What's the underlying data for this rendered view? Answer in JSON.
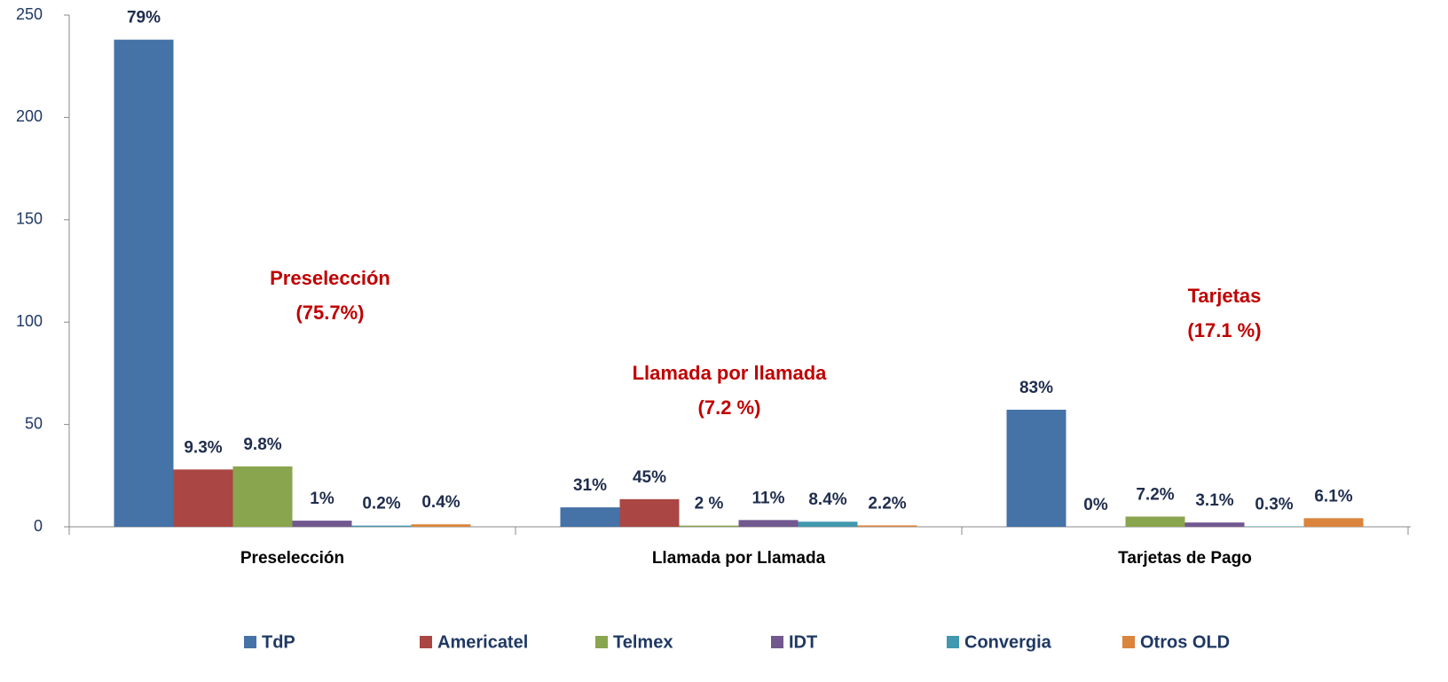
{
  "chart_data": {
    "type": "bar",
    "categories": [
      "Preselección",
      "Llamada por Llamada",
      "Tarjetas de Pago"
    ],
    "series": [
      {
        "name": "TdP",
        "color": "#4572a7",
        "values": [
          238,
          9.5,
          57.2
        ],
        "percent_labels": [
          "79%",
          "31%",
          "83%"
        ]
      },
      {
        "name": "Americatel",
        "color": "#aa4643",
        "values": [
          28,
          13.5,
          0
        ],
        "percent_labels": [
          "9.3%",
          "45%",
          "0%"
        ]
      },
      {
        "name": "Telmex",
        "color": "#89a54e",
        "values": [
          29.5,
          0.6,
          5
        ],
        "percent_labels": [
          "9.8%",
          "2 %",
          "7.2%"
        ]
      },
      {
        "name": "IDT",
        "color": "#71588f",
        "values": [
          3,
          3.3,
          2.1
        ],
        "percent_labels": [
          "1%",
          "11%",
          "3.1%"
        ]
      },
      {
        "name": "Convergia",
        "color": "#4198af",
        "values": [
          0.6,
          2.5,
          0.2
        ],
        "percent_labels": [
          "0.2%",
          "8.4%",
          "0.3%"
        ]
      },
      {
        "name": "Otros OLD",
        "color": "#db843d",
        "values": [
          1.2,
          0.7,
          4.2
        ],
        "percent_labels": [
          "0.4%",
          "2.2%",
          "6.1%"
        ]
      }
    ],
    "annotations": [
      [
        "Preselección",
        "(75.7%)"
      ],
      [
        "Llamada por llamada",
        "(7.2 %)"
      ],
      [
        "Tarjetas",
        "(17.1 %)"
      ]
    ],
    "ylim": [
      0,
      250
    ],
    "yticks": [
      0,
      50,
      100,
      150,
      200,
      250
    ],
    "grid": false,
    "legend": "bottom"
  }
}
